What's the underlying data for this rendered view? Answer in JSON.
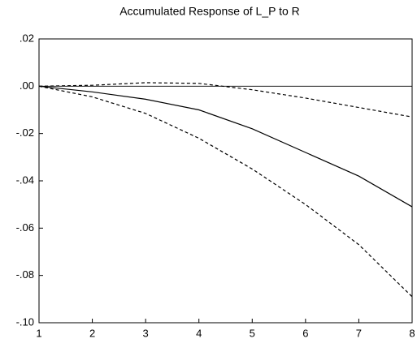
{
  "chart_data": {
    "type": "line",
    "title": "Accumulated Response of L_P to R",
    "x": [
      1,
      2,
      3,
      4,
      5,
      6,
      7,
      8
    ],
    "xlim": [
      1,
      8
    ],
    "xticks": [
      1,
      2,
      3,
      4,
      5,
      6,
      7,
      8
    ],
    "ylim": [
      -0.1,
      0.02
    ],
    "yticks": [
      {
        "value": 0.02,
        "label": ".02"
      },
      {
        "value": 0.0,
        "label": ".00"
      },
      {
        "value": -0.02,
        "label": "-.02"
      },
      {
        "value": -0.04,
        "label": "-.04"
      },
      {
        "value": -0.06,
        "label": "-.06"
      },
      {
        "value": -0.08,
        "label": "-.08"
      },
      {
        "value": -0.1,
        "label": "-.10"
      }
    ],
    "reference_line": 0,
    "grid": false,
    "series": [
      {
        "style": "solid",
        "color": "#000000",
        "values": [
          0,
          -0.0024,
          -0.0055,
          -0.01,
          -0.018,
          -0.028,
          -0.038,
          -0.051
        ]
      },
      {
        "style": "dashed",
        "color": "#000000",
        "values": [
          0,
          0.0004,
          0.0015,
          0.0012,
          -0.0015,
          -0.005,
          -0.009,
          -0.013
        ]
      },
      {
        "style": "dashed",
        "color": "#000000",
        "values": [
          0,
          -0.0045,
          -0.0115,
          -0.022,
          -0.035,
          -0.05,
          -0.067,
          -0.089
        ]
      }
    ]
  }
}
